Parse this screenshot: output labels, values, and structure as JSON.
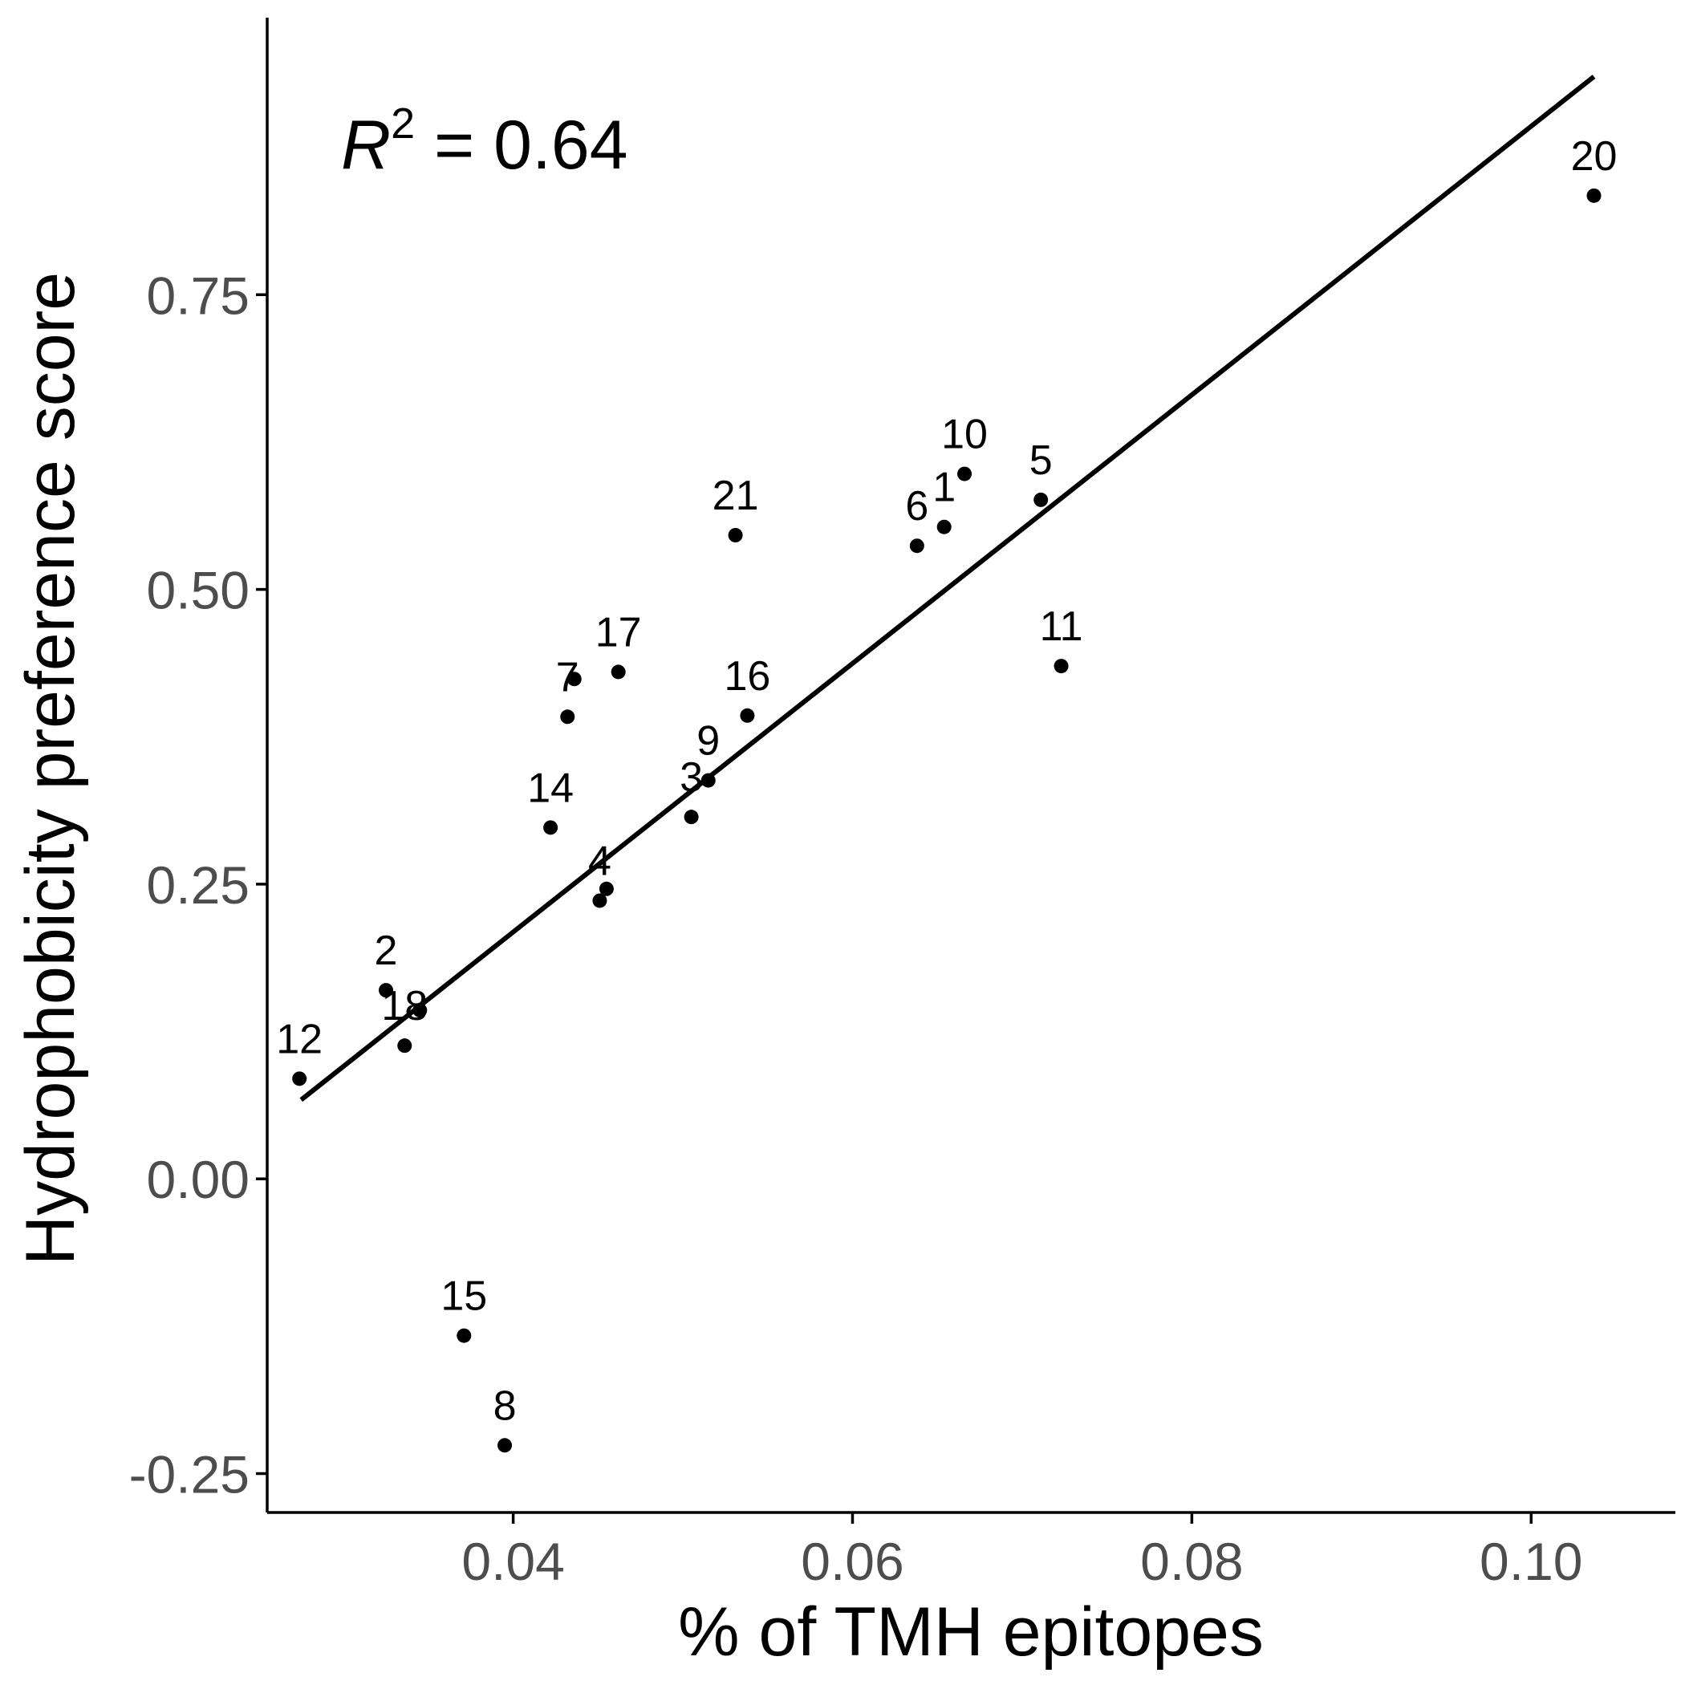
{
  "chart_data": {
    "type": "scatter",
    "xlabel": "% of TMH epitopes",
    "ylabel": "Hydrophobicity preference score",
    "xlim": [
      0.0255,
      0.1085
    ],
    "ylim": [
      -0.283,
      0.985
    ],
    "x_ticks": [
      {
        "value": 0.04,
        "label": "0.04"
      },
      {
        "value": 0.06,
        "label": "0.06"
      },
      {
        "value": 0.08,
        "label": "0.08"
      },
      {
        "value": 0.1,
        "label": "0.10"
      }
    ],
    "y_ticks": [
      {
        "value": -0.25,
        "label": "-0.25"
      },
      {
        "value": 0.0,
        "label": "0.00"
      },
      {
        "value": 0.25,
        "label": "0.25"
      },
      {
        "value": 0.5,
        "label": "0.50"
      },
      {
        "value": 0.75,
        "label": "0.75"
      }
    ],
    "grid": false,
    "annotation": {
      "r2_symbol": "R",
      "r2_exponent": "2",
      "r2_text": " = 0.64"
    },
    "fit_line": {
      "x": [
        0.0275,
        0.1037
      ],
      "y": [
        0.067,
        0.935
      ]
    },
    "points": [
      {
        "label": "1",
        "x": 0.0654,
        "y": 0.553
      },
      {
        "label": "2",
        "x": 0.0325,
        "y": 0.16
      },
      {
        "label": "3",
        "x": 0.0505,
        "y": 0.307
      },
      {
        "label": "4",
        "x": 0.0451,
        "y": 0.236
      },
      {
        "label": "5",
        "x": 0.0711,
        "y": 0.576
      },
      {
        "label": "6",
        "x": 0.0638,
        "y": 0.537
      },
      {
        "label": "7",
        "x": 0.0432,
        "y": 0.392
      },
      {
        "label": "8",
        "x": 0.0395,
        "y": -0.226
      },
      {
        "label": "9",
        "x": 0.0515,
        "y": 0.338
      },
      {
        "label": "10",
        "x": 0.0666,
        "y": 0.598
      },
      {
        "label": "11",
        "x": 0.0723,
        "y": 0.435
      },
      {
        "label": "12",
        "x": 0.0274,
        "y": 0.085
      },
      {
        "label": "14",
        "x": 0.0422,
        "y": 0.298
      },
      {
        "label": "15",
        "x": 0.0371,
        "y": -0.133
      },
      {
        "label": "16",
        "x": 0.0538,
        "y": 0.393
      },
      {
        "label": "17",
        "x": 0.0462,
        "y": 0.43
      },
      {
        "label": "18",
        "x": 0.0336,
        "y": 0.113
      },
      {
        "label": "20",
        "x": 0.1037,
        "y": 0.834
      },
      {
        "label": "21",
        "x": 0.0531,
        "y": 0.546
      },
      {
        "label": "",
        "x": 0.0436,
        "y": 0.424
      },
      {
        "label": "",
        "x": 0.0455,
        "y": 0.246
      },
      {
        "label": "",
        "x": 0.0345,
        "y": 0.143
      }
    ]
  }
}
